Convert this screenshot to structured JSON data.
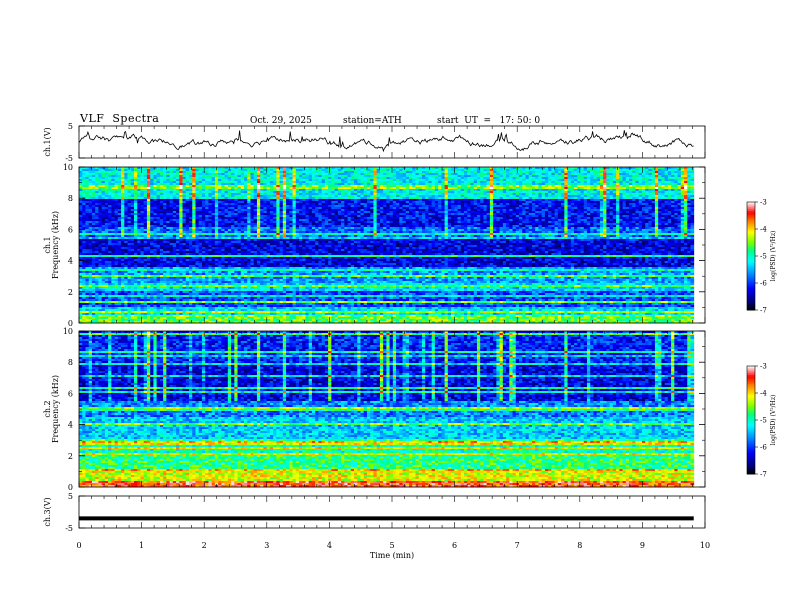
{
  "header": {
    "title": "VLF  Spectra",
    "date": "Oct. 29, 2025",
    "station": "station=ATH",
    "start_ut": "start  UT  =   17: 50: 0"
  },
  "colors": {
    "colormap": [
      "#000000",
      "#00007f",
      "#0000ff",
      "#007fff",
      "#00ffff",
      "#00ff7f",
      "#7fff00",
      "#ffff00",
      "#ff7f00",
      "#ff0000",
      "#ff9f9f",
      "#ffffff"
    ]
  },
  "chart_data": [
    {
      "type": "line",
      "name": "ch1-waveform",
      "ylabel": "ch.1(V)",
      "ylim": [
        -5,
        5
      ],
      "yticks": [
        "5",
        "-5"
      ],
      "xlim": [
        0,
        10
      ],
      "description_values": {
        "mean": 0.2,
        "amplitude": 1.8,
        "x_end": 9.82
      }
    },
    {
      "type": "heatmap",
      "name": "ch1-spectrogram",
      "ylabel_top": "ch.1",
      "ylabel": "Frequency (kHz)",
      "ylim": [
        0,
        10
      ],
      "yticks": [
        "10",
        "8",
        "6",
        "4",
        "2",
        "0"
      ],
      "xlim": [
        0,
        10
      ],
      "x_end": 9.82,
      "colorbar": {
        "label": "log(PSD) (V²/Hz)",
        "range": [
          -7,
          -3
        ],
        "ticks": [
          "-3",
          "-4",
          "-5",
          "-6",
          "-7"
        ]
      },
      "band_levels_log": [
        {
          "f": [
            0.0,
            0.5
          ],
          "v": -4.6
        },
        {
          "f": [
            0.5,
            1.0
          ],
          "v": -5.3
        },
        {
          "f": [
            1.0,
            2.0
          ],
          "v": -5.9
        },
        {
          "f": [
            2.0,
            2.6
          ],
          "v": -5.3
        },
        {
          "f": [
            2.6,
            3.6
          ],
          "v": -5.6
        },
        {
          "f": [
            3.6,
            5.5
          ],
          "v": -6.3
        },
        {
          "f": [
            5.5,
            6.2
          ],
          "v": -5.8
        },
        {
          "f": [
            6.2,
            8.0
          ],
          "v": -6.2
        },
        {
          "f": [
            8.0,
            10.0
          ],
          "v": -5.2
        }
      ]
    },
    {
      "type": "heatmap",
      "name": "ch2-spectrogram",
      "ylabel_top": "ch.2",
      "ylabel": "Frequency (kHz)",
      "ylim": [
        0,
        10
      ],
      "yticks": [
        "10",
        "8",
        "6",
        "4",
        "2",
        "0"
      ],
      "xlim": [
        0,
        10
      ],
      "x_end": 9.82,
      "colorbar": {
        "label": "log(PSD) (V²/Hz)",
        "range": [
          -7,
          -3
        ],
        "ticks": [
          "-3",
          "-4",
          "-5",
          "-6",
          "-7"
        ]
      },
      "band_levels_log": [
        {
          "f": [
            0.0,
            0.4
          ],
          "v": -3.5
        },
        {
          "f": [
            0.4,
            1.0
          ],
          "v": -4.2
        },
        {
          "f": [
            1.0,
            2.0
          ],
          "v": -4.8
        },
        {
          "f": [
            2.0,
            3.0
          ],
          "v": -5.0
        },
        {
          "f": [
            3.0,
            4.5
          ],
          "v": -5.4
        },
        {
          "f": [
            4.5,
            5.5
          ],
          "v": -5.7
        },
        {
          "f": [
            5.5,
            8.0
          ],
          "v": -6.3
        },
        {
          "f": [
            8.0,
            10.0
          ],
          "v": -6.1
        }
      ]
    },
    {
      "type": "line",
      "name": "ch3-waveform",
      "ylabel": "ch.3(V)",
      "ylim": [
        -5,
        5
      ],
      "yticks": [
        "5",
        "-5"
      ],
      "xlim": [
        0,
        10
      ],
      "xlabel": "Time  (min)",
      "xticks": [
        "0",
        "1",
        "2",
        "3",
        "4",
        "5",
        "6",
        "7",
        "8",
        "9",
        "10"
      ],
      "description_values": {
        "level": -2.0,
        "x_end": 9.82
      }
    }
  ]
}
